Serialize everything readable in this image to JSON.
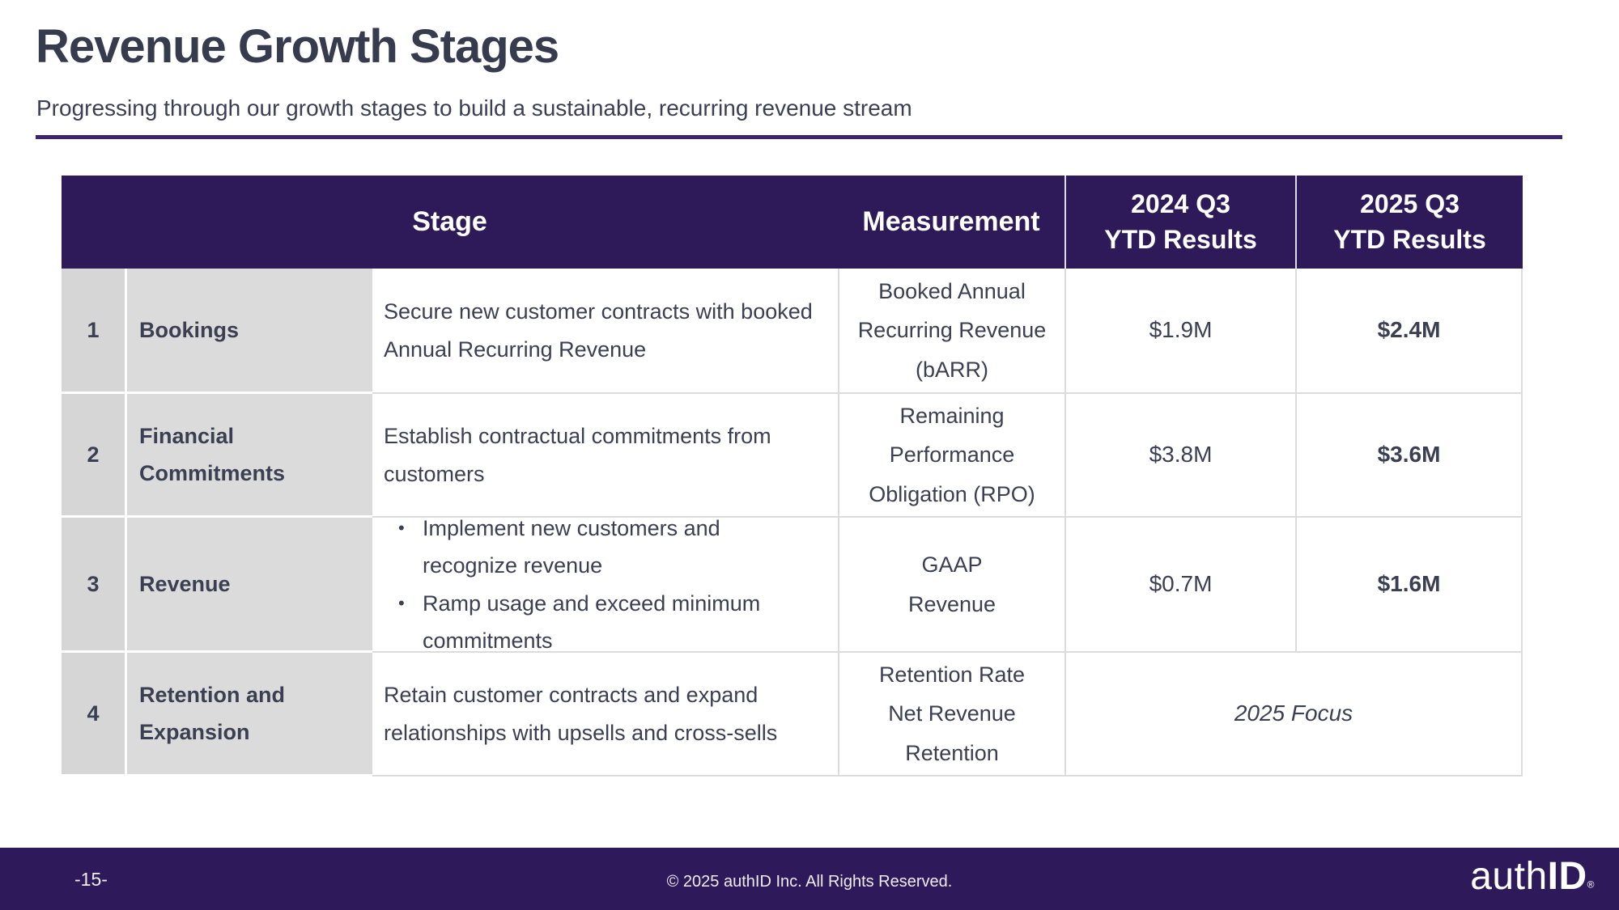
{
  "slide": {
    "title": "Revenue Growth Stages",
    "subtitle": "Progressing through our growth stages to build a sustainable, recurring revenue stream"
  },
  "table": {
    "header": {
      "stage": "Stage",
      "measurement": "Measurement",
      "y2024_line1": "2024 Q3",
      "y2024_line2": "YTD Results",
      "y2025_line1": "2025 Q3",
      "y2025_line2": "YTD Results"
    },
    "rows": [
      {
        "num": "1",
        "name": "Bookings",
        "description": "Secure new customer contracts with booked Annual Recurring Revenue",
        "measurement_lines": [
          "Booked Annual",
          "Recurring Revenue",
          "(bARR)"
        ],
        "result_2024": "$1.9M",
        "result_2025": "$2.4M"
      },
      {
        "num": "2",
        "name": "Financial Commitments",
        "description": "Establish contractual commitments from customers",
        "measurement_lines": [
          "Remaining",
          "Performance",
          "Obligation (RPO)"
        ],
        "result_2024": "$3.8M",
        "result_2025": "$3.6M"
      },
      {
        "num": "3",
        "name": "Revenue",
        "bullets": [
          "Implement new customers and recognize revenue",
          "Ramp usage and exceed minimum commitments"
        ],
        "measurement_lines": [
          "GAAP",
          "Revenue"
        ],
        "result_2024": "$0.7M",
        "result_2025": "$1.6M"
      },
      {
        "num": "4",
        "name": "Retention and Expansion",
        "description": "Retain customer contracts and expand relationships with upsells and cross-sells",
        "measurement_lines": [
          "Retention Rate",
          "Net Revenue",
          "Retention"
        ],
        "merged_result": "2025 Focus"
      }
    ]
  },
  "footer": {
    "page_number": "-15-",
    "copyright": "© 2025 authID Inc. All Rights Reserved.",
    "logo": {
      "light": "auth",
      "bold": "ID",
      "registered": "®"
    }
  },
  "colors": {
    "header_bg": "#2E1A58",
    "footer_bg": "#2E1A5B",
    "divider": "#3B236F",
    "title_text": "#363B4E",
    "body_text": "#3A3F52",
    "gray_cell_num": "#D6D6D6",
    "gray_cell_name": "#DBDBDB",
    "cell_border": "#DCDCDC"
  }
}
